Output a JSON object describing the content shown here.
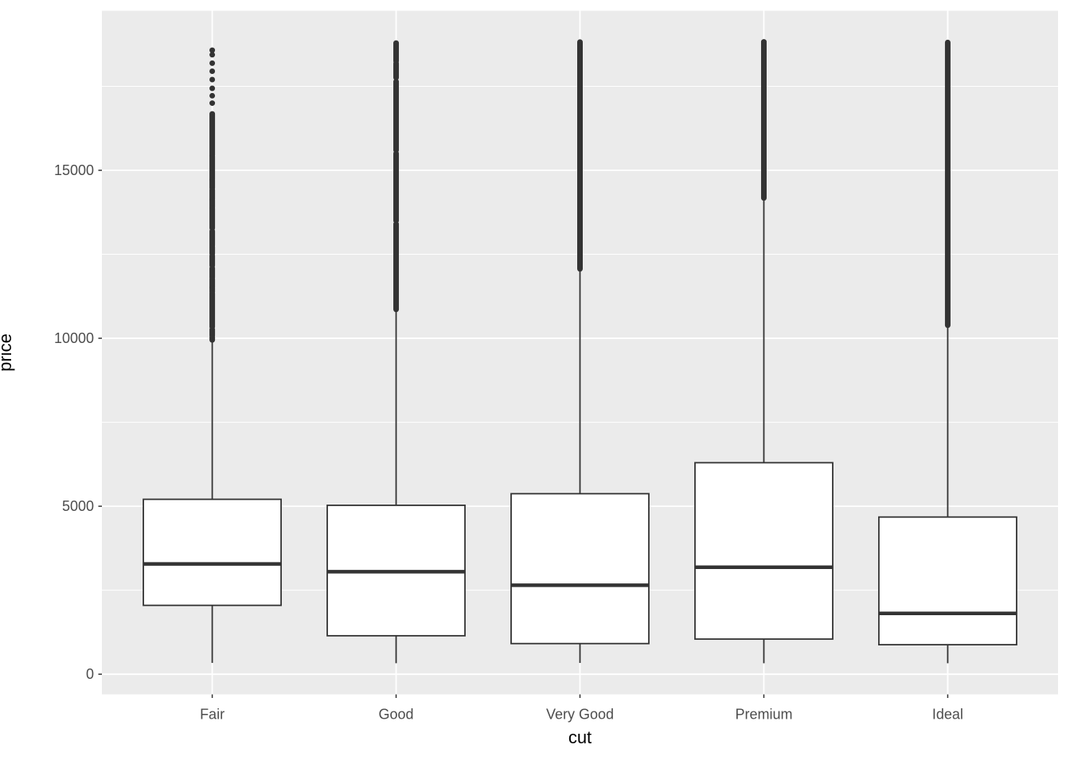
{
  "figure": {
    "y_axis_title": "price",
    "x_axis_title": "cut",
    "colors": {
      "panel_background": "#EBEBEB",
      "gridline": "#FFFFFF",
      "box_stroke": "#333333",
      "box_fill": "#FFFFFF",
      "outlier": "#333333",
      "tick_mark": "#333333",
      "tick_label": "#4D4D4D",
      "axis_title": "#000000"
    }
  },
  "chart_data": {
    "type": "boxplot",
    "title": "",
    "xlabel": "cut",
    "ylabel": "price",
    "categories": [
      "Fair",
      "Good",
      "Very Good",
      "Premium",
      "Ideal"
    ],
    "y_ticks": [
      0,
      5000,
      10000,
      15000
    ],
    "y_tick_labels": [
      "0",
      "5000",
      "10000",
      "15000"
    ],
    "y_minor_ticks": [
      2500,
      7500,
      12500,
      17500
    ],
    "ylim": [
      -600,
      19750
    ],
    "grid": "major-and-minor, white on grey panel",
    "legend": "none",
    "series": [
      {
        "name": "Fair",
        "whisker_low": 337,
        "q1": 2050,
        "median": 3282,
        "q3": 5206,
        "whisker_high": 9900,
        "outlier_points": [
          18574,
          18440,
          18190,
          17950,
          17700,
          17440,
          17220,
          17000
        ],
        "outlier_segments": [
          [
            16680,
            15450
          ],
          [
            15420,
            14730
          ],
          [
            14710,
            14470
          ],
          [
            14420,
            14140
          ],
          [
            14110,
            13900
          ],
          [
            13875,
            13280
          ],
          [
            13190,
            12760
          ],
          [
            12720,
            12520
          ],
          [
            12450,
            12165
          ],
          [
            12090,
            11810
          ],
          [
            11760,
            11520
          ],
          [
            11500,
            11380
          ],
          [
            11340,
            10340
          ],
          [
            10260,
            10080
          ],
          [
            10030,
            9950
          ]
        ]
      },
      {
        "name": "Good",
        "whisker_low": 327,
        "q1": 1145,
        "median": 3050,
        "q3": 5028,
        "whisker_high": 10840,
        "outlier_points": [],
        "outlier_segments": [
          [
            18788,
            18250
          ],
          [
            18180,
            17760
          ],
          [
            17640,
            15600
          ],
          [
            15500,
            13500
          ],
          [
            13400,
            10860
          ]
        ]
      },
      {
        "name": "Very Good",
        "whisker_low": 336,
        "q1": 912,
        "median": 2648,
        "q3": 5373,
        "whisker_high": 12030,
        "outlier_points": [],
        "outlier_segments": [
          [
            18818,
            12065
          ]
        ]
      },
      {
        "name": "Premium",
        "whisker_low": 326,
        "q1": 1046,
        "median": 3185,
        "q3": 6296,
        "whisker_high": 14160,
        "outlier_points": [],
        "outlier_segments": [
          [
            18823,
            14175
          ]
        ]
      },
      {
        "name": "Ideal",
        "whisker_low": 326,
        "q1": 878,
        "median": 1810,
        "q3": 4679,
        "whisker_high": 10370,
        "outlier_points": [],
        "outlier_segments": [
          [
            18806,
            10390
          ]
        ]
      }
    ]
  }
}
